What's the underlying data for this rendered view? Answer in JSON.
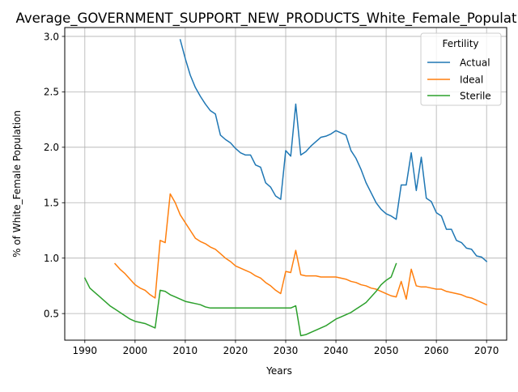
{
  "chart_data": {
    "type": "line",
    "title": "Average_GOVERNMENT_SUPPORT_NEW_PRODUCTS_White_Female_Populat",
    "xlabel": "Years",
    "ylabel": "% of White_Female Population",
    "xlim": [
      1986,
      2074
    ],
    "ylim": [
      0.26,
      3.08
    ],
    "xticks": [
      1990,
      2000,
      2010,
      2020,
      2030,
      2040,
      2050,
      2060,
      2070
    ],
    "yticks": [
      0.5,
      1.0,
      1.5,
      2.0,
      2.5,
      3.0
    ],
    "xtick_labels": [
      "1990",
      "2000",
      "2010",
      "2020",
      "2030",
      "2040",
      "2050",
      "2060",
      "2070"
    ],
    "ytick_labels": [
      "0.5",
      "1.0",
      "1.5",
      "2.0",
      "2.5",
      "3.0"
    ],
    "grid": true,
    "legend": {
      "title": "Fertility",
      "position": "top-right"
    },
    "series": [
      {
        "name": "Actual",
        "color": "#1f77b4",
        "x": [
          2009,
          2010,
          2011,
          2012,
          2013,
          2014,
          2015,
          2016,
          2017,
          2018,
          2019,
          2020,
          2021,
          2022,
          2023,
          2024,
          2025,
          2026,
          2027,
          2028,
          2029,
          2030,
          2031,
          2032,
          2033,
          2034,
          2035,
          2036,
          2037,
          2038,
          2039,
          2040,
          2041,
          2042,
          2043,
          2044,
          2045,
          2046,
          2047,
          2048,
          2049,
          2050,
          2051,
          2052,
          2053,
          2054,
          2055,
          2056,
          2057,
          2058,
          2059,
          2060,
          2061,
          2062,
          2063,
          2064,
          2065,
          2066,
          2067,
          2068,
          2069,
          2070
        ],
        "y": [
          2.97,
          2.8,
          2.65,
          2.54,
          2.46,
          2.39,
          2.33,
          2.3,
          2.11,
          2.07,
          2.04,
          1.99,
          1.95,
          1.93,
          1.93,
          1.84,
          1.82,
          1.68,
          1.64,
          1.56,
          1.53,
          1.97,
          1.92,
          2.39,
          1.93,
          1.96,
          2.01,
          2.05,
          2.09,
          2.1,
          2.12,
          2.15,
          2.13,
          2.11,
          1.97,
          1.9,
          1.8,
          1.68,
          1.59,
          1.5,
          1.44,
          1.4,
          1.38,
          1.35,
          1.66,
          1.66,
          1.95,
          1.61,
          1.91,
          1.54,
          1.51,
          1.41,
          1.38,
          1.26,
          1.26,
          1.16,
          1.14,
          1.09,
          1.08,
          1.02,
          1.01,
          0.97
        ]
      },
      {
        "name": "Ideal",
        "color": "#ff7f0e",
        "x": [
          1996,
          1997,
          1998,
          1999,
          2000,
          2001,
          2002,
          2003,
          2004,
          2005,
          2006,
          2007,
          2008,
          2009,
          2010,
          2011,
          2012,
          2013,
          2014,
          2015,
          2016,
          2017,
          2018,
          2019,
          2020,
          2021,
          2022,
          2023,
          2024,
          2025,
          2026,
          2027,
          2028,
          2029,
          2030,
          2031,
          2032,
          2033,
          2034,
          2035,
          2036,
          2037,
          2038,
          2039,
          2040,
          2041,
          2042,
          2043,
          2044,
          2045,
          2046,
          2047,
          2048,
          2049,
          2050,
          2051,
          2052,
          2053,
          2054,
          2055,
          2056,
          2057,
          2058,
          2059,
          2060,
          2061,
          2062,
          2063,
          2064,
          2065,
          2066,
          2067,
          2068,
          2069,
          2070
        ],
        "y": [
          0.95,
          0.9,
          0.86,
          0.81,
          0.76,
          0.73,
          0.71,
          0.67,
          0.64,
          1.16,
          1.14,
          1.58,
          1.5,
          1.39,
          1.32,
          1.25,
          1.18,
          1.15,
          1.13,
          1.1,
          1.08,
          1.04,
          1.0,
          0.97,
          0.93,
          0.91,
          0.89,
          0.87,
          0.84,
          0.82,
          0.78,
          0.75,
          0.71,
          0.68,
          0.88,
          0.87,
          1.07,
          0.85,
          0.84,
          0.84,
          0.84,
          0.83,
          0.83,
          0.83,
          0.83,
          0.82,
          0.81,
          0.79,
          0.78,
          0.76,
          0.75,
          0.73,
          0.72,
          0.7,
          0.68,
          0.66,
          0.65,
          0.79,
          0.63,
          0.9,
          0.75,
          0.74,
          0.74,
          0.73,
          0.72,
          0.72,
          0.7,
          0.69,
          0.68,
          0.67,
          0.65,
          0.64,
          0.62,
          0.6,
          0.58
        ]
      },
      {
        "name": "Sterile",
        "color": "#2ca02c",
        "x": [
          1990,
          1991,
          1992,
          1993,
          1994,
          1995,
          1996,
          1997,
          1998,
          1999,
          2000,
          2001,
          2002,
          2003,
          2004,
          2005,
          2006,
          2007,
          2008,
          2009,
          2010,
          2011,
          2012,
          2013,
          2014,
          2015,
          2016,
          2017,
          2018,
          2019,
          2020,
          2021,
          2022,
          2023,
          2024,
          2025,
          2026,
          2027,
          2028,
          2029,
          2030,
          2031,
          2032,
          2033,
          2034,
          2035,
          2036,
          2037,
          2038,
          2039,
          2040,
          2041,
          2042,
          2043,
          2044,
          2045,
          2046,
          2047,
          2048,
          2049,
          2050,
          2051,
          2052
        ],
        "y": [
          0.82,
          0.73,
          0.69,
          0.65,
          0.61,
          0.57,
          0.54,
          0.51,
          0.48,
          0.45,
          0.43,
          0.42,
          0.41,
          0.39,
          0.37,
          0.71,
          0.7,
          0.67,
          0.65,
          0.63,
          0.61,
          0.6,
          0.59,
          0.58,
          0.56,
          0.55,
          0.55,
          0.55,
          0.55,
          0.55,
          0.55,
          0.55,
          0.55,
          0.55,
          0.55,
          0.55,
          0.55,
          0.55,
          0.55,
          0.55,
          0.55,
          0.55,
          0.57,
          0.3,
          0.31,
          0.33,
          0.35,
          0.37,
          0.39,
          0.42,
          0.45,
          0.47,
          0.49,
          0.51,
          0.54,
          0.57,
          0.6,
          0.65,
          0.7,
          0.76,
          0.8,
          0.83,
          0.95
        ]
      }
    ]
  }
}
